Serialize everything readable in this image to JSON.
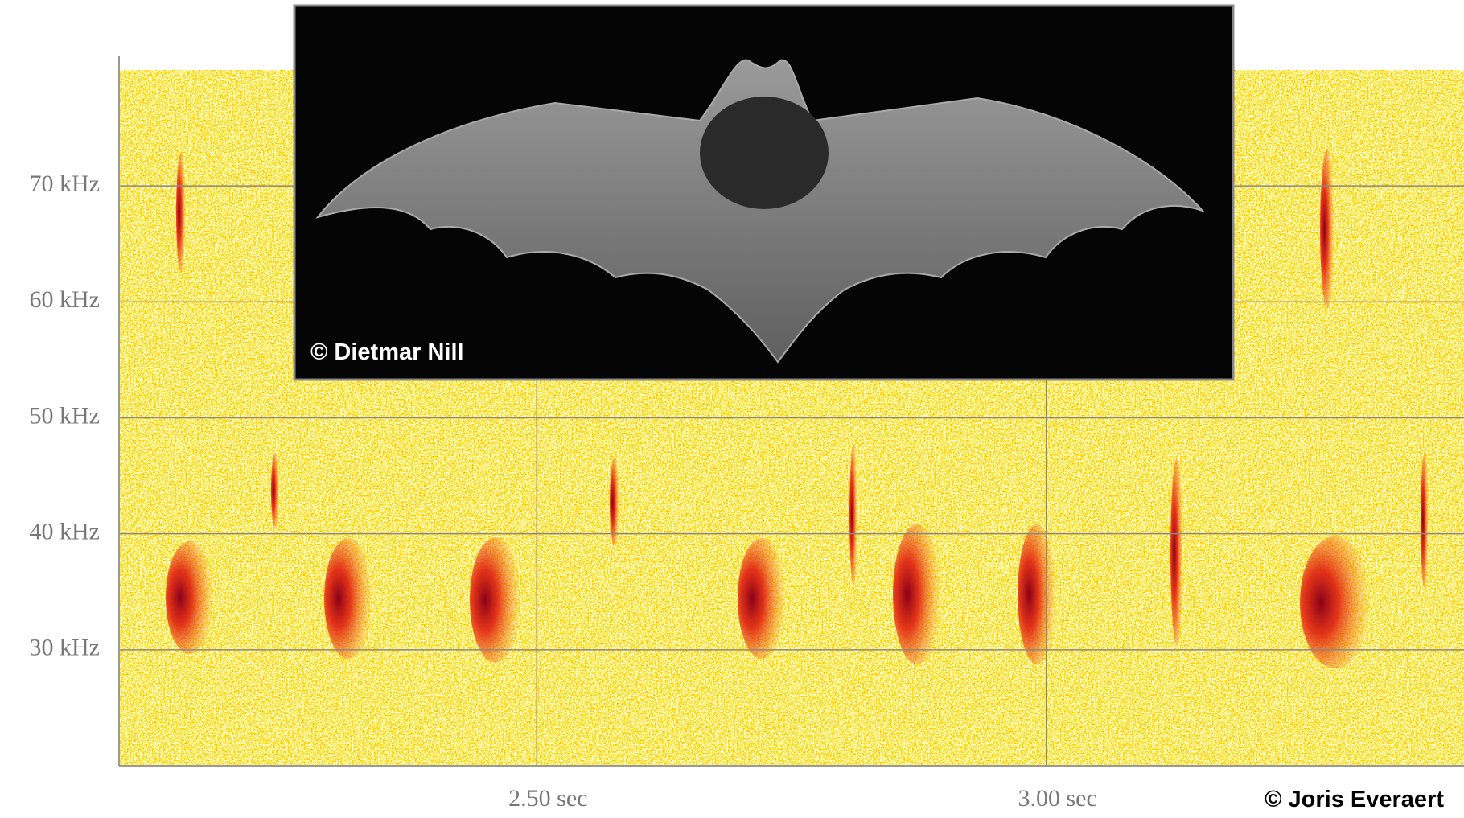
{
  "chart_data": {
    "type": "spectrogram",
    "xlim": [
      2.09,
      3.41
    ],
    "xticks": [
      {
        "value": 2.5,
        "label": "2.50 sec"
      },
      {
        "value": 3.0,
        "label": "3.00 sec"
      }
    ],
    "ylim": [
      20,
      80
    ],
    "yticks": [
      {
        "value": 30,
        "label": "30 kHz"
      },
      {
        "value": 40,
        "label": "40 kHz"
      },
      {
        "value": 50,
        "label": "50 kHz"
      },
      {
        "value": 60,
        "label": "60 kHz"
      },
      {
        "value": 70,
        "label": "70 kHz"
      }
    ],
    "grid": true,
    "photo_credit": "© Dietmar Nill",
    "credit": "© Joris Everaert"
  }
}
